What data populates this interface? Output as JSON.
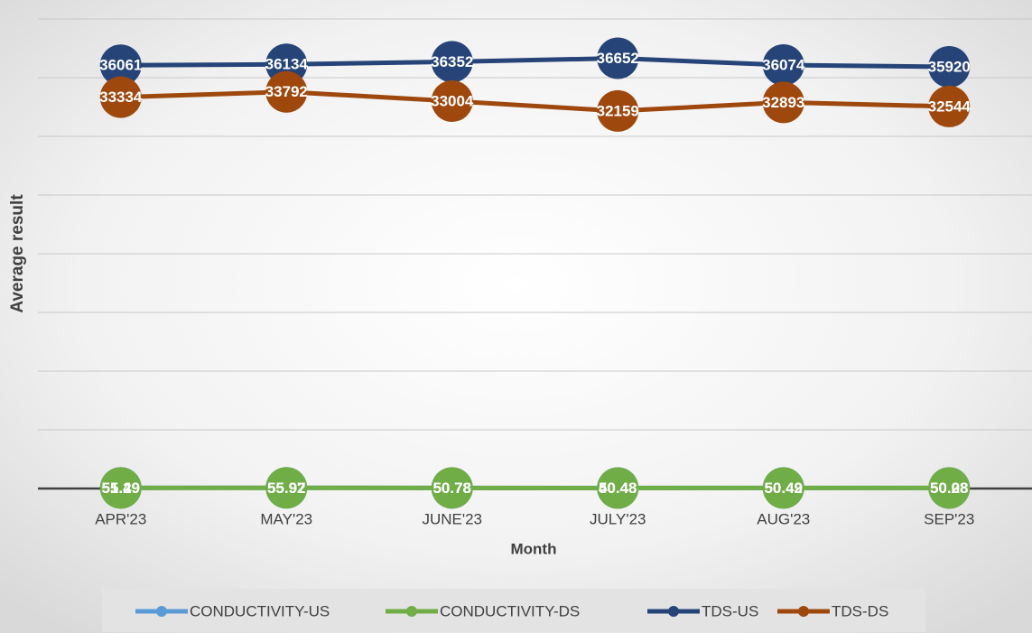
{
  "chart_data": {
    "type": "line",
    "x_label": "Month",
    "y_label": "Average result",
    "categories": [
      "APR'23",
      "MAY'23",
      "JUNE'23",
      "JULY'23",
      "AUG'23",
      "SEP'23"
    ],
    "series": [
      {
        "name": "CONDUCTIVITY-US",
        "color": "#5b9bd5",
        "values": [
          55.29,
          55.92,
          50.78,
          50.48,
          50.49,
          50.28
        ]
      },
      {
        "name": "CONDUCTIVITY-DS",
        "color": "#70ad47",
        "values": [
          51.49,
          55.97,
          50.78,
          40.48,
          50.42,
          50.08
        ]
      },
      {
        "name": "TDS-US",
        "color": "#264478",
        "values": [
          36061,
          36134,
          36352,
          36652,
          36074,
          35920
        ]
      },
      {
        "name": "TDS-DS",
        "color": "#9e480e",
        "values": [
          33334,
          33792,
          33004,
          32159,
          32893,
          32544
        ]
      }
    ],
    "ylim": [
      0,
      40000
    ],
    "yticks": [
      0,
      5000,
      10000,
      15000,
      20000,
      25000,
      30000,
      35000,
      40000
    ],
    "grid": true,
    "legend": "bottom"
  }
}
